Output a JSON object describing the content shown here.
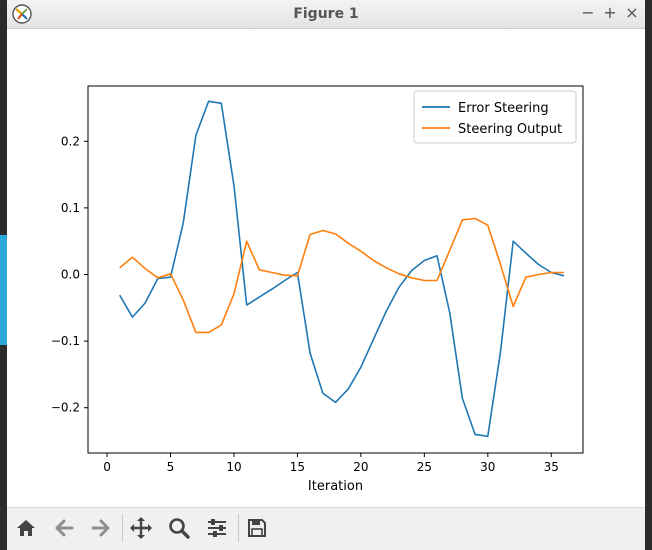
{
  "window": {
    "title": "Figure 1"
  },
  "window_controls": {
    "minimize": "−",
    "maximize": "+",
    "close": "×"
  },
  "toolbar": {
    "icons": [
      "home-icon",
      "back-arrow-icon",
      "forward-arrow-icon",
      "pan-icon",
      "zoom-icon",
      "configure-subplots-icon",
      "save-icon"
    ]
  },
  "colors": {
    "error_steering": "#1f77b4",
    "steering_output": "#ff7f0e"
  },
  "chart_data": {
    "type": "line",
    "title": "",
    "xlabel": "Iteration",
    "ylabel": "",
    "xlim": [
      -1.5,
      37.5
    ],
    "ylim": [
      -0.268,
      0.283
    ],
    "xticks": [
      0,
      5,
      10,
      15,
      20,
      25,
      30,
      35
    ],
    "yticks": [
      -0.2,
      -0.1,
      0.0,
      0.1,
      0.2
    ],
    "ytick_labels": [
      "−0.2",
      "−0.1",
      "0.0",
      "0.1",
      "0.2"
    ],
    "grid": false,
    "legend": "top-right",
    "x": [
      1,
      2,
      3,
      4,
      5,
      6,
      7,
      8,
      9,
      10,
      11,
      12,
      13,
      14,
      15,
      16,
      17,
      18,
      19,
      20,
      21,
      22,
      23,
      24,
      25,
      26,
      27,
      28,
      29,
      30,
      31,
      32,
      33,
      34,
      35,
      36
    ],
    "series": [
      {
        "name": "Error Steering",
        "values": [
          -0.031,
          -0.064,
          -0.043,
          -0.006,
          -0.004,
          0.077,
          0.209,
          0.26,
          0.257,
          0.133,
          -0.046,
          -0.034,
          -0.022,
          -0.009,
          0.003,
          -0.118,
          -0.178,
          -0.192,
          -0.172,
          -0.139,
          -0.097,
          -0.055,
          -0.019,
          0.006,
          0.021,
          0.028,
          -0.057,
          -0.186,
          -0.24,
          -0.243,
          -0.116,
          0.05,
          0.032,
          0.015,
          0.003,
          -0.002
        ]
      },
      {
        "name": "Steering Output",
        "values": [
          0.01,
          0.026,
          0.009,
          -0.005,
          0.001,
          -0.038,
          -0.087,
          -0.087,
          -0.076,
          -0.029,
          0.05,
          0.007,
          0.003,
          -0.001,
          -0.002,
          0.06,
          0.066,
          0.061,
          0.047,
          0.035,
          0.021,
          0.01,
          0.001,
          -0.005,
          -0.009,
          -0.009,
          0.036,
          0.082,
          0.084,
          0.074,
          0.015,
          -0.048,
          -0.004,
          0.0,
          0.003,
          0.003
        ]
      }
    ]
  }
}
